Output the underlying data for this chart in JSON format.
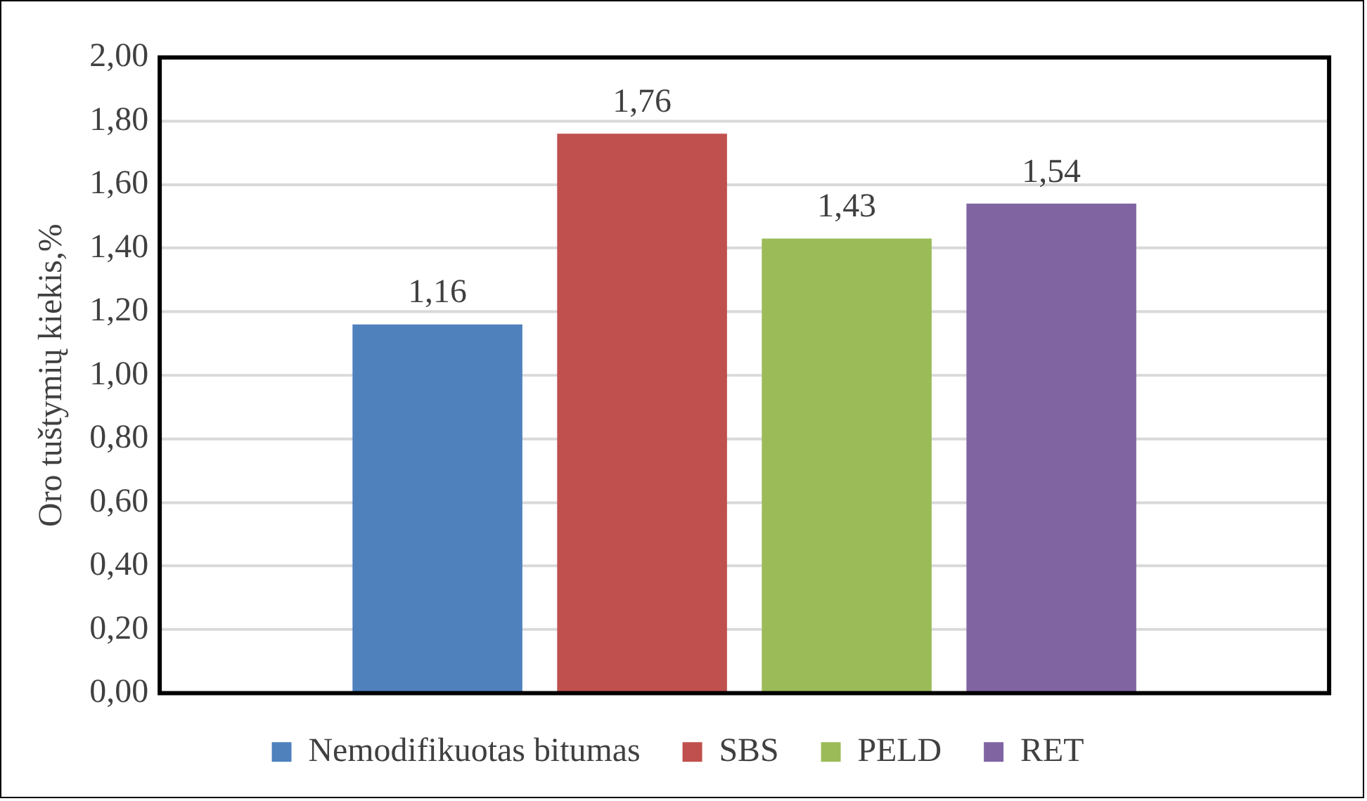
{
  "chart_data": {
    "type": "bar",
    "categories": [
      null
    ],
    "ylabel": "Oro tuštymių kiekis,%",
    "series": [
      {
        "name": "Nemodifikuotas bitumas",
        "color": "#4f81bd",
        "values": [
          1.16
        ],
        "value_labels": [
          "1,16"
        ]
      },
      {
        "name": "SBS",
        "color": "#c0504d",
        "values": [
          1.76
        ],
        "value_labels": [
          "1,76"
        ]
      },
      {
        "name": "PELD",
        "color": "#9bbb59",
        "values": [
          1.43
        ],
        "value_labels": [
          "1,43"
        ]
      },
      {
        "name": "RET",
        "color": "#8064a2",
        "values": [
          1.54
        ],
        "value_labels": [
          "1,54"
        ]
      }
    ],
    "ylim": [
      0,
      2
    ],
    "yticks": [
      {
        "value": 0,
        "label": "0,00"
      },
      {
        "value": 0.2,
        "label": "0,20"
      },
      {
        "value": 0.4,
        "label": "0,40"
      },
      {
        "value": 0.6,
        "label": "0,60"
      },
      {
        "value": 0.8,
        "label": "0,80"
      },
      {
        "value": 1,
        "label": "1,00"
      },
      {
        "value": 1.2,
        "label": "1,20"
      },
      {
        "value": 1.4,
        "label": "1,40"
      },
      {
        "value": 1.6,
        "label": "1,60"
      },
      {
        "value": 1.8,
        "label": "1,80"
      },
      {
        "value": 2,
        "label": "2,00"
      }
    ],
    "grid": "y",
    "legend": "bottom"
  }
}
